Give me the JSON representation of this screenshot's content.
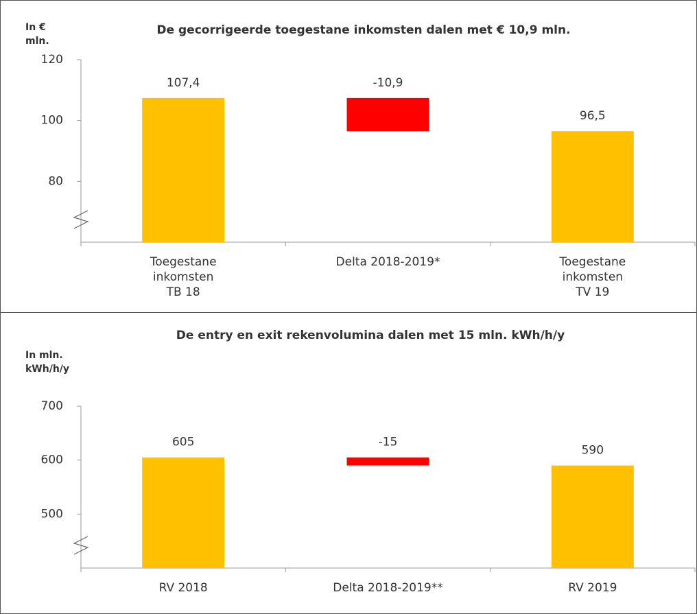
{
  "chart_data": [
    {
      "type": "waterfall",
      "title": "De gecorrigeerde toegestane inkomsten dalen met € 10,9 mln.",
      "ylabel": "In €\nmln.",
      "categories": [
        "Toegestane\ninkomsten\nTB 18",
        "Delta 2018-2019*",
        "Toegestane\ninkomsten\nTV 19"
      ],
      "values": [
        107.4,
        -10.9,
        96.5
      ],
      "value_labels": [
        "107,4",
        "-10,9",
        "96,5"
      ],
      "measure": [
        "absolute",
        "relative",
        "absolute"
      ],
      "colors": [
        "#ffc000",
        "#ff0000",
        "#ffc000"
      ],
      "ylim": [
        60,
        120
      ],
      "yticks": [
        80,
        100,
        120
      ],
      "axis_break": true
    },
    {
      "type": "waterfall",
      "title": "De entry en exit rekenvolumina dalen met 15 mln. kWh/h/y",
      "ylabel": "In mln.\nkWh/h/y",
      "categories": [
        "RV 2018",
        "Delta 2018-2019**",
        "RV 2019"
      ],
      "values": [
        605,
        -15,
        590
      ],
      "measure": [
        "absolute",
        "relative",
        "absolute"
      ],
      "colors": [
        "#ffc000",
        "#ff0000",
        "#ffc000"
      ],
      "ylim": [
        400,
        700
      ],
      "yticks": [
        500,
        600,
        700
      ],
      "axis_break": true
    }
  ]
}
